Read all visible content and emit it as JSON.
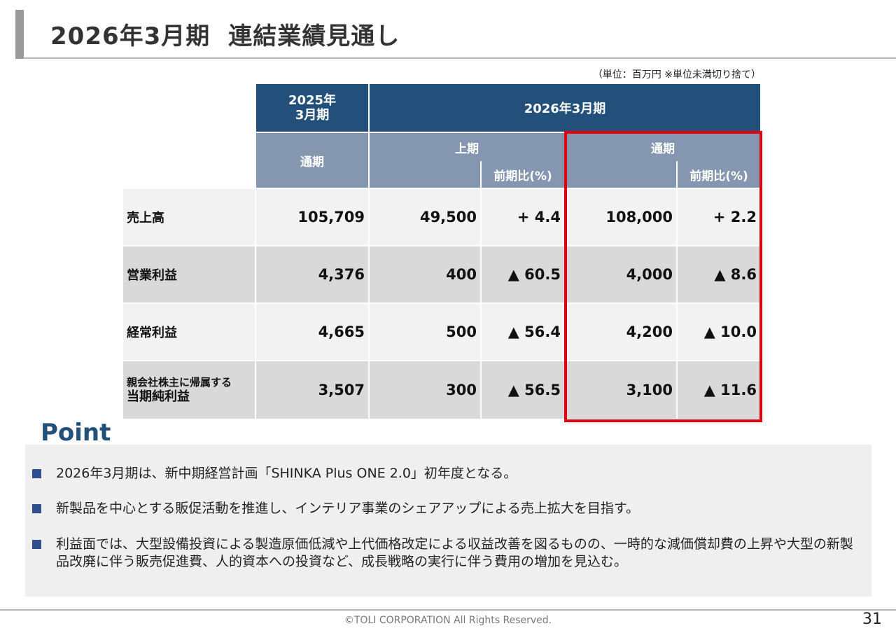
{
  "header": {
    "title_left": "2026年3月期",
    "title_right": "連結業績見通し"
  },
  "unit_note": "（単位：百万円 ※単位未満切り捨て）",
  "table": {
    "prev_year_header": [
      "2025年",
      "3月期"
    ],
    "current_year_header": "2026年3月期",
    "sub_full_year_prev": "通期",
    "sub_first_half": "上期",
    "sub_full_year": "通期",
    "sub_ratio_half": "前期比(%)",
    "sub_ratio_full": "前期比(%)",
    "rows": [
      {
        "label": [
          "売上高"
        ],
        "prev": "105,709",
        "h1": "49,500",
        "h1_ratio": "+ 4.4",
        "fy": "108,000",
        "fy_ratio": "+ 2.2"
      },
      {
        "label": [
          "営業利益"
        ],
        "prev": "4,376",
        "h1": "400",
        "h1_ratio": "▲ 60.5",
        "fy": "4,000",
        "fy_ratio": "▲ 8.6"
      },
      {
        "label": [
          "経常利益"
        ],
        "prev": "4,665",
        "h1": "500",
        "h1_ratio": "▲ 56.4",
        "fy": "4,200",
        "fy_ratio": "▲ 10.0"
      },
      {
        "label": [
          "親会社株主に帰属する",
          "当期純利益"
        ],
        "prev": "3,507",
        "h1": "300",
        "h1_ratio": "▲ 56.5",
        "fy": "3,100",
        "fy_ratio": "▲ 11.6"
      }
    ]
  },
  "point": {
    "title": "Point",
    "bullets": [
      "2026年3月期は、新中期経営計画「SHINKA Plus ONE 2.0」初年度となる。",
      "新製品を中心とする販促活動を推進し、インテリア事業のシェアアップによる売上拡大を目指す。",
      "利益面では、大型設備投資による製造原価低減や上代価格改定による収益改善を図るものの、一時的な減価償却費の上昇や大型の新製品改廃に伴う販売促進費、人的資本への投資など、成長戦略の実行に伴う費用の増加を見込む。"
    ]
  },
  "footer": {
    "copyright": "©TOLI CORPORATION All Rights Reserved.",
    "page": "31"
  },
  "colors": {
    "header_dark": "#22507a",
    "header_light": "#8496b0",
    "highlight": "#e3000f",
    "accent": "#2e4f8f"
  }
}
